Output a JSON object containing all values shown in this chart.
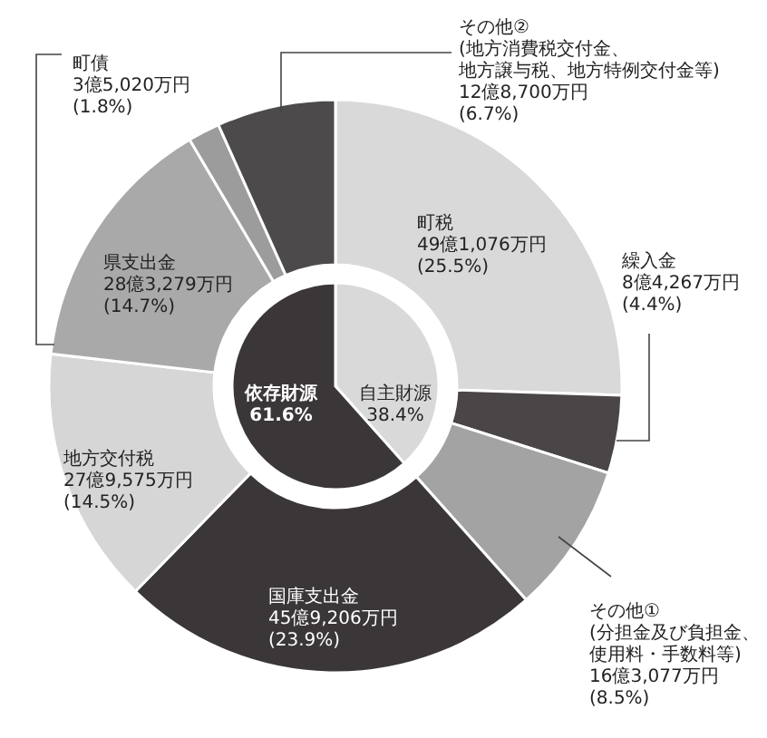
{
  "chart_data": [
    {
      "type": "donut",
      "categories": [
        "町税",
        "繰入金",
        "その他①(分担金及び負担金、使用料・手数料等)",
        "国庫支出金",
        "地方交付税",
        "県支出金",
        "町債",
        "その他②(地方消費税交付金、地方譲与税、地方特例交付金等)"
      ],
      "values": [
        25.5,
        4.4,
        8.5,
        23.9,
        14.5,
        14.7,
        1.8,
        6.7
      ],
      "value_labels": [
        "49億1,076万円\n(25.5%)",
        "8億4,267万円\n(4.4%)",
        "16億3,077万円\n(8.5%)",
        "45億9,206万円\n(23.9%)",
        "27億9,575万円\n(14.5%)",
        "28億3,279万円\n(14.7%)",
        "3億5,020万円\n(1.8%)",
        "12億8,700万円\n(6.7%)"
      ],
      "colors": [
        "#d9d9d9",
        "#4a4647",
        "#a3a3a3",
        "#3b3738",
        "#d6d6d6",
        "#a9a9a9",
        "#9c9c9c",
        "#4d4a4b"
      ]
    },
    {
      "type": "pie",
      "categories": [
        "自主財源",
        "依存財源"
      ],
      "values": [
        38.4,
        61.6
      ],
      "value_labels": [
        "38.4%",
        "61.6%"
      ],
      "colors": [
        "#d9d9d9",
        "#3b3738"
      ]
    }
  ]
}
